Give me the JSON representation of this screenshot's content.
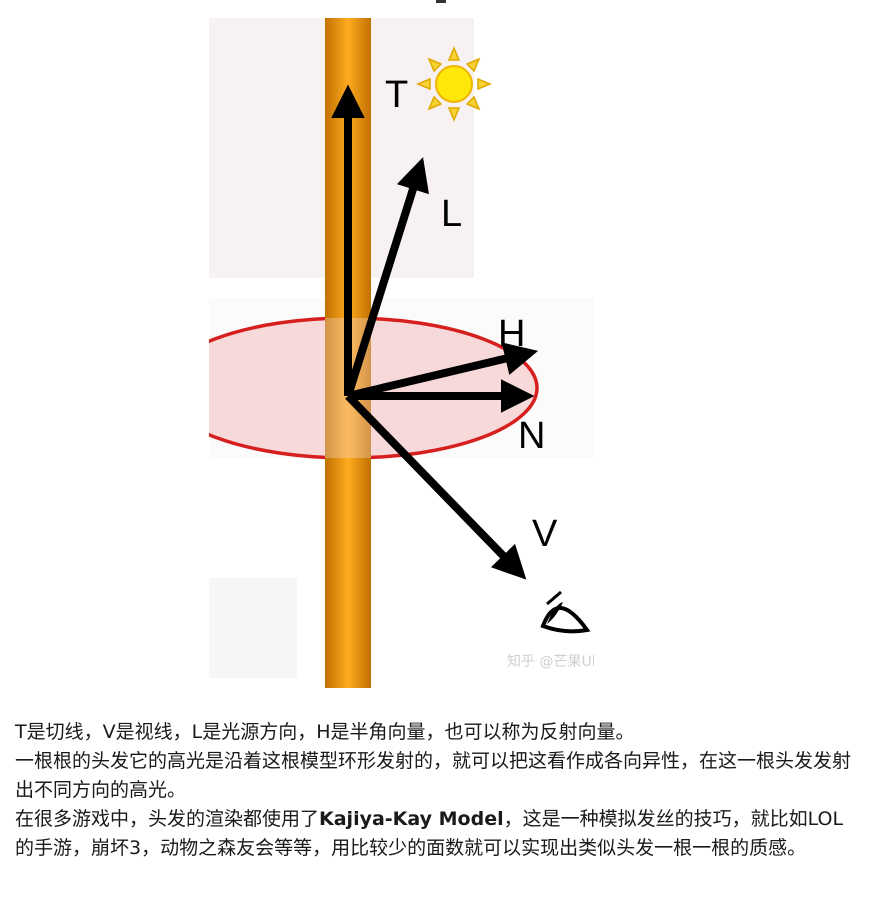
{
  "figure": {
    "labels": {
      "t": "T",
      "l": "L",
      "h": "H",
      "n": "N",
      "v": "V"
    },
    "watermark": "知乎 @芒果Uki",
    "colors": {
      "hair_strand": "#f2a01c",
      "hair_strand_edge": "#b86f00",
      "ellipse_fill": "#f7d6d6",
      "ellipse_stroke": "#d62020",
      "arrow": "#000000",
      "sun": "#f7d21a"
    },
    "icons": [
      "sun-icon",
      "eye-icon"
    ]
  },
  "caption": {
    "line1": "T是切线，V是视线，L是光源方向，H是半角向量，也可以称为反射向量。",
    "line2": "一根根的头发它的高光是沿着这根模型环形发射的，就可以把这看作成各向异性，在这一根头发发射出不同方向的高光。",
    "line3_before": "在很多游戏中，头发的渲染都使用了",
    "line3_bold": "Kajiya-Kay Model",
    "line3_after": "，这是一种模拟发丝的技巧，就比如LOL的手游，崩坏3，动物之森友会等等，用比较少的面数就可以实现出类似头发一根一根的质感。"
  }
}
